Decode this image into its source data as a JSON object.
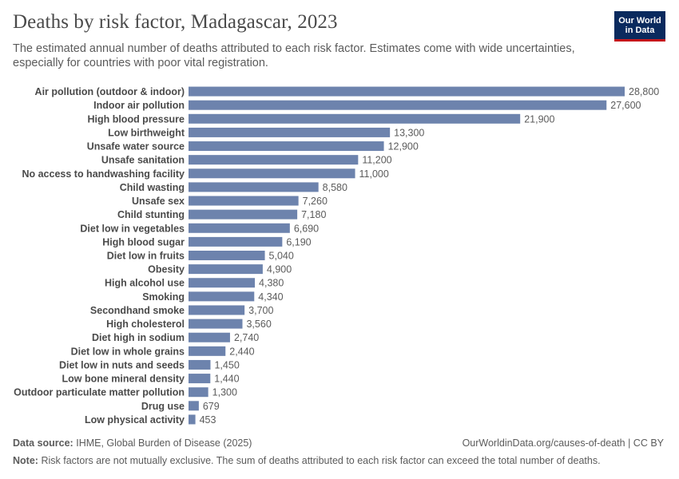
{
  "header": {
    "title": "Deaths by risk factor, Madagascar, 2023",
    "subtitle": "The estimated annual number of deaths attributed to each risk factor. Estimates come with wide uncertainties, especially for countries with poor vital registration.",
    "logo_line1": "Our World",
    "logo_line2": "in Data"
  },
  "footer": {
    "source_label": "Data source:",
    "source_text": "IHME, Global Burden of Disease (2025)",
    "url_text": "OurWorldinData.org/causes-of-death | CC BY",
    "note_label": "Note:",
    "note_text": "Risk factors are not mutually exclusive. The sum of deaths attributed to each risk factor can exceed the total number of deaths."
  },
  "colors": {
    "bar": "#6d83ad",
    "label": "#4a4a4a",
    "value": "#5b5b5b",
    "logo_bg": "#0a2a5e",
    "logo_accent": "#c4161c"
  },
  "chart_data": {
    "type": "bar",
    "orientation": "horizontal",
    "categories": [
      "Air pollution (outdoor & indoor)",
      "Indoor air pollution",
      "High blood pressure",
      "Low birthweight",
      "Unsafe water source",
      "Unsafe sanitation",
      "No access to handwashing facility",
      "Child wasting",
      "Unsafe sex",
      "Child stunting",
      "Diet low in vegetables",
      "High blood sugar",
      "Diet low in fruits",
      "Obesity",
      "High alcohol use",
      "Smoking",
      "Secondhand smoke",
      "High cholesterol",
      "Diet high in sodium",
      "Diet low in whole grains",
      "Diet low in nuts and seeds",
      "Low bone mineral density",
      "Outdoor particulate matter pollution",
      "Drug use",
      "Low physical activity"
    ],
    "values": [
      28800,
      27600,
      21900,
      13300,
      12900,
      11200,
      11000,
      8580,
      7260,
      7180,
      6690,
      6190,
      5040,
      4900,
      4380,
      4340,
      3700,
      3560,
      2740,
      2440,
      1450,
      1440,
      1300,
      679,
      453
    ],
    "value_labels": [
      "28,800",
      "27,600",
      "21,900",
      "13,300",
      "12,900",
      "11,200",
      "11,000",
      "8,580",
      "7,260",
      "7,180",
      "6,690",
      "6,190",
      "5,040",
      "4,900",
      "4,380",
      "4,340",
      "3,700",
      "3,560",
      "2,740",
      "2,440",
      "1,450",
      "1,440",
      "1,300",
      "679",
      "453"
    ],
    "xlim": [
      0,
      28800
    ],
    "grid": false,
    "legend": "none"
  }
}
